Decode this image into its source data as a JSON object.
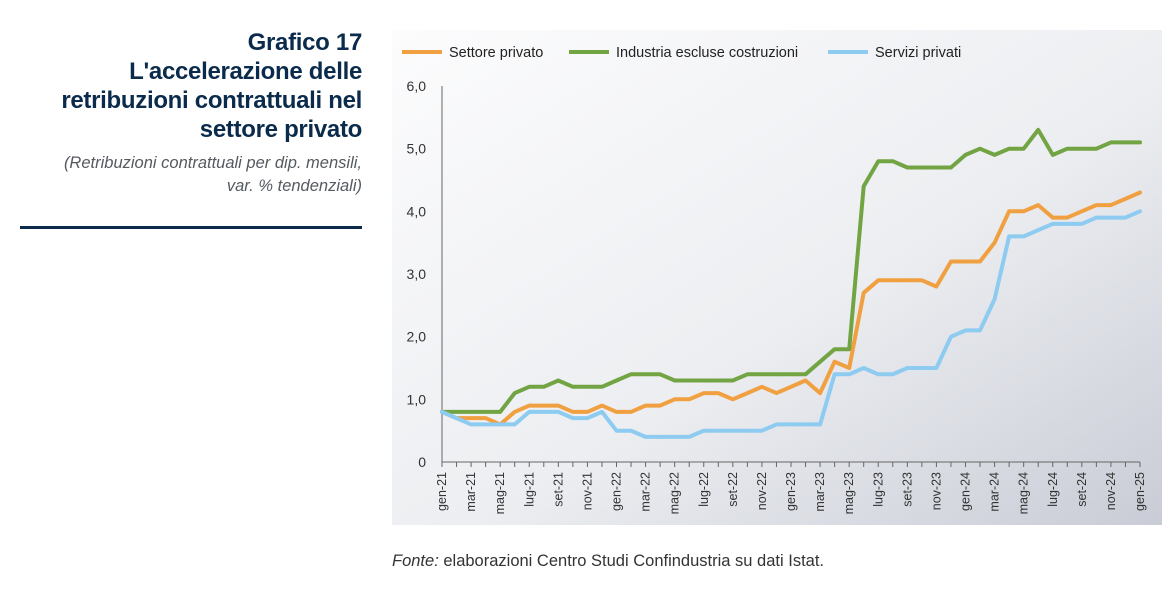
{
  "header": {
    "number": "Grafico 17",
    "title_lines": [
      "L'accelerazione delle",
      "retribuzioni contrattuali nel",
      "settore privato"
    ],
    "subtitle_lines": [
      "(Retribuzioni contrattuali per dip. mensili,",
      "var. % tendenziali)"
    ]
  },
  "source": {
    "label": "Fonte:",
    "text": " elaborazioni Centro Studi Confindustria su dati Istat."
  },
  "colors": {
    "settore_privato": "#f0a040",
    "industria": "#72a443",
    "servizi": "#8ecbf0",
    "background_grad_start": "#fcfcfd",
    "background_grad_end": "#c9ccd6"
  },
  "chart_data": {
    "type": "line",
    "legend_position": "top",
    "grid": false,
    "ylim": [
      0,
      6
    ],
    "yticks": [
      "0",
      "1,0",
      "2,0",
      "3,0",
      "4,0",
      "5,0",
      "6,0"
    ],
    "xtick_labels": [
      "gen-21",
      "mar-21",
      "mag-21",
      "lug-21",
      "set-21",
      "nov-21",
      "gen-22",
      "mar-22",
      "mag-22",
      "lug-22",
      "set-22",
      "nov-22",
      "gen-23",
      "mar-23",
      "mag-23",
      "lug-23",
      "set-23",
      "nov-23",
      "gen-24",
      "mar-24",
      "mag-24",
      "lug-24",
      "set-24",
      "nov-24",
      "gen-25"
    ],
    "x": [
      "gen-21",
      "feb-21",
      "mar-21",
      "apr-21",
      "mag-21",
      "giu-21",
      "lug-21",
      "ago-21",
      "set-21",
      "ott-21",
      "nov-21",
      "dic-21",
      "gen-22",
      "feb-22",
      "mar-22",
      "apr-22",
      "mag-22",
      "giu-22",
      "lug-22",
      "ago-22",
      "set-22",
      "ott-22",
      "nov-22",
      "dic-22",
      "gen-23",
      "feb-23",
      "mar-23",
      "apr-23",
      "mag-23",
      "giu-23",
      "lug-23",
      "ago-23",
      "set-23",
      "ott-23",
      "nov-23",
      "dic-23",
      "gen-24",
      "feb-24",
      "mar-24",
      "apr-24",
      "mag-24",
      "giu-24",
      "lug-24",
      "ago-24",
      "set-24",
      "ott-24",
      "nov-24",
      "dic-24",
      "gen-25"
    ],
    "series": [
      {
        "name": "Settore privato",
        "color_key": "settore_privato",
        "values": [
          0.8,
          0.7,
          0.7,
          0.7,
          0.6,
          0.8,
          0.9,
          0.9,
          0.9,
          0.8,
          0.8,
          0.9,
          0.8,
          0.8,
          0.9,
          0.9,
          1.0,
          1.0,
          1.1,
          1.1,
          1.0,
          1.1,
          1.2,
          1.1,
          1.2,
          1.3,
          1.1,
          1.6,
          1.5,
          2.7,
          2.9,
          2.9,
          2.9,
          2.9,
          2.8,
          3.2,
          3.2,
          3.2,
          3.5,
          4.0,
          4.0,
          4.1,
          3.9,
          3.9,
          4.0,
          4.1,
          4.1,
          4.2,
          4.3
        ]
      },
      {
        "name": "Industria escluse costruzioni",
        "color_key": "industria",
        "values": [
          0.8,
          0.8,
          0.8,
          0.8,
          0.8,
          1.1,
          1.2,
          1.2,
          1.3,
          1.2,
          1.2,
          1.2,
          1.3,
          1.4,
          1.4,
          1.4,
          1.3,
          1.3,
          1.3,
          1.3,
          1.3,
          1.4,
          1.4,
          1.4,
          1.4,
          1.4,
          1.6,
          1.8,
          1.8,
          4.4,
          4.8,
          4.8,
          4.7,
          4.7,
          4.7,
          4.7,
          4.9,
          5.0,
          4.9,
          5.0,
          5.0,
          5.3,
          4.9,
          5.0,
          5.0,
          5.0,
          5.1,
          5.1,
          5.1
        ]
      },
      {
        "name": "Servizi privati",
        "color_key": "servizi",
        "values": [
          0.8,
          0.7,
          0.6,
          0.6,
          0.6,
          0.6,
          0.8,
          0.8,
          0.8,
          0.7,
          0.7,
          0.8,
          0.5,
          0.5,
          0.4,
          0.4,
          0.4,
          0.4,
          0.5,
          0.5,
          0.5,
          0.5,
          0.5,
          0.6,
          0.6,
          0.6,
          0.6,
          1.4,
          1.4,
          1.5,
          1.4,
          1.4,
          1.5,
          1.5,
          1.5,
          2.0,
          2.1,
          2.1,
          2.6,
          3.6,
          3.6,
          3.7,
          3.8,
          3.8,
          3.8,
          3.9,
          3.9,
          3.9,
          4.0
        ]
      }
    ]
  }
}
